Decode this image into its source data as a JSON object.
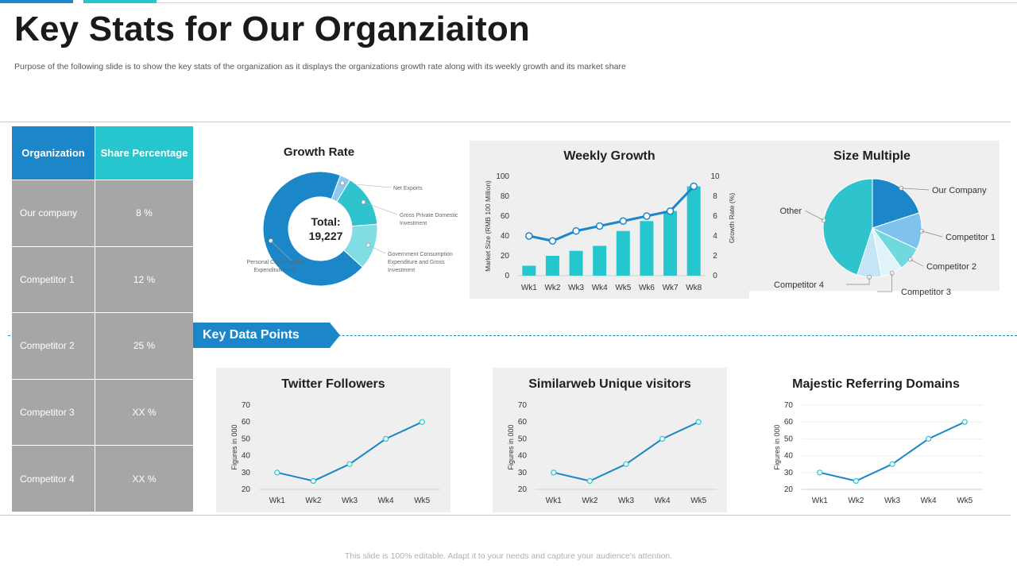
{
  "page": {
    "title": "Key Stats for Our Organziaiton",
    "subtitle": "Purpose of the following slide is to show the key stats of the organization as it displays the organizations growth rate along with its weekly growth and its market share",
    "footer": "This slide is 100% editable. Adapt it to your needs and capture your audience's attention.",
    "section_label": "Key Data Points"
  },
  "colors": {
    "primary": "#1b87c9",
    "accent": "#26c6cf",
    "table_grey": "#a6a6a6",
    "panel": "#efefef"
  },
  "table": {
    "headers": [
      "Organization",
      "Share Percentage"
    ],
    "rows": [
      [
        "Our company",
        "8 %"
      ],
      [
        "Competitor  1",
        "12 %"
      ],
      [
        "Competitor  2",
        "25 %"
      ],
      [
        "Competitor  3",
        "XX %"
      ],
      [
        "Competitor  4",
        "XX %"
      ]
    ]
  },
  "chart_data": [
    {
      "id": "growth-rate",
      "type": "pie",
      "variant": "donut",
      "title": "Growth Rate",
      "center_label": "Total:",
      "center_value": "19,227",
      "slices": [
        {
          "label": "Personal Consumption Expenditure 69%",
          "value": 69,
          "color": "#1b87c9"
        },
        {
          "label": "Net Exports",
          "value": 3,
          "color": "#8fc9ef"
        },
        {
          "label": "Gross Private Domestic Investment",
          "value": 15,
          "color": "#2fc3cd"
        },
        {
          "label": "Government Consumption Expenditure and Gross Investment",
          "value": 13,
          "color": "#7fdde3"
        }
      ]
    },
    {
      "id": "weekly-growth",
      "type": "bar",
      "title": "Weekly Growth",
      "categories": [
        "Wk1",
        "Wk2",
        "Wk3",
        "Wk4",
        "Wk5",
        "Wk6",
        "Wk7",
        "Wk8"
      ],
      "series": [
        {
          "name": "Market Size",
          "type": "bar",
          "axis": "left",
          "values": [
            10,
            20,
            25,
            30,
            45,
            55,
            65,
            90
          ]
        },
        {
          "name": "Growth Rate",
          "type": "line",
          "axis": "right",
          "values": [
            4,
            3.5,
            4.5,
            5,
            5.5,
            6,
            6.5,
            9
          ]
        }
      ],
      "ylabel": "Market Size (RMB 100 Million)",
      "ylabel_right": "Growth Rate (%)",
      "ylim": [
        0,
        100
      ],
      "ylim_right": [
        0,
        10
      ],
      "yticks": [
        "0",
        "20",
        "40",
        "60",
        "80",
        "100"
      ],
      "yticks_right": [
        "0",
        "2",
        "4",
        "6",
        "8",
        "10"
      ]
    },
    {
      "id": "size-multiple",
      "type": "pie",
      "title": "Size Multiple",
      "slices": [
        {
          "label": "Our Company",
          "value": 20,
          "color": "#1b87c9"
        },
        {
          "label": "Competitor 1",
          "value": 12,
          "color": "#7fc3ec"
        },
        {
          "label": "Competitor 2",
          "value": 8,
          "color": "#6fd9df"
        },
        {
          "label": "Competitor 3",
          "value": 7,
          "color": "#dff3f8"
        },
        {
          "label": "Competitor 4",
          "value": 8,
          "color": "#c4e5f5"
        },
        {
          "label": "Other",
          "value": 45,
          "color": "#2fc3cd"
        }
      ]
    },
    {
      "id": "twitter-followers",
      "type": "line",
      "title": "Twitter Followers",
      "categories": [
        "Wk1",
        "Wk2",
        "Wk3",
        "Wk4",
        "Wk5"
      ],
      "values": [
        30,
        25,
        35,
        50,
        60
      ],
      "ylabel": "Figures in 000",
      "ylim": [
        20,
        70
      ],
      "yticks": [
        "20",
        "30",
        "40",
        "50",
        "60",
        "70"
      ]
    },
    {
      "id": "similarweb-visitors",
      "type": "line",
      "title": "Similarweb Unique visitors",
      "categories": [
        "Wk1",
        "Wk2",
        "Wk3",
        "Wk4",
        "Wk5"
      ],
      "values": [
        30,
        25,
        35,
        50,
        60
      ],
      "ylabel": "Figures in 000",
      "ylim": [
        20,
        70
      ],
      "yticks": [
        "20",
        "30",
        "40",
        "50",
        "60",
        "70"
      ]
    },
    {
      "id": "majestic-domains",
      "type": "line",
      "title": "Majestic  Referring Domains",
      "categories": [
        "Wk1",
        "Wk2",
        "Wk3",
        "Wk4",
        "Wk5"
      ],
      "values": [
        30,
        25,
        35,
        50,
        60
      ],
      "ylabel": "Figures in 000",
      "ylim": [
        20,
        70
      ],
      "yticks": [
        "20",
        "30",
        "40",
        "50",
        "60",
        "70"
      ]
    }
  ]
}
